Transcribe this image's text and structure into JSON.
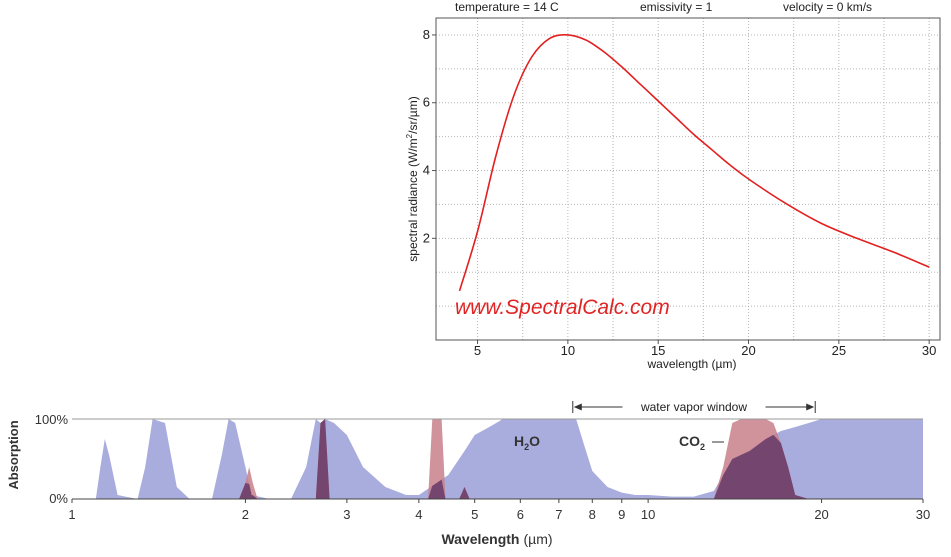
{
  "chart_data": [
    {
      "type": "line",
      "params": {
        "temperature": "temperature = 14 C",
        "emissivity": "emissivity = 1",
        "velocity": "velocity = 0 km/s"
      },
      "xlabel": "wavelength (µm)",
      "ylabel_main": "spectral radiance (W/m",
      "ylabel_sup": "2",
      "ylabel_tail": "/sr/µm)",
      "xlim": [
        2.7,
        30.6
      ],
      "ylim": [
        -1,
        8.5
      ],
      "xticks": [
        5,
        10,
        15,
        20,
        25,
        30
      ],
      "yticks": [
        2,
        4,
        6,
        8
      ],
      "grid": true,
      "watermark": "www.SpectralCalc.com",
      "line_color": "#e32020",
      "series": [
        {
          "x": [
            4,
            5,
            6,
            7,
            8,
            9,
            10,
            11,
            12,
            13,
            14,
            15,
            16,
            17,
            18,
            19,
            20,
            22,
            24,
            26,
            28,
            30
          ],
          "y": [
            0.45,
            2.2,
            4.4,
            6.2,
            7.35,
            7.9,
            8.0,
            7.85,
            7.5,
            7.05,
            6.55,
            6.05,
            5.55,
            5.05,
            4.6,
            4.15,
            3.75,
            3.05,
            2.45,
            2.0,
            1.6,
            1.15
          ]
        }
      ]
    },
    {
      "type": "area",
      "xscale": "log",
      "xlabel_main": "Wavelength",
      "xlabel_unit": "(µm)",
      "ylabel": "Absorption",
      "yticks": [
        "100%",
        "0%"
      ],
      "xticks": [
        "1",
        "2",
        "3",
        "4",
        "5",
        "6",
        "7",
        "8",
        "9",
        "10",
        "20",
        "30"
      ],
      "xlim": [
        1,
        30
      ],
      "ylim": [
        0,
        100
      ],
      "window_label": "water vapor window",
      "window_range": [
        7.4,
        19.5
      ],
      "labels": {
        "h2o_main": "H",
        "h2o_sub": "2",
        "h2o_tail": "O",
        "co2_main": "CO",
        "co2_sub": "2"
      },
      "colors": {
        "h2o": "#a9addd",
        "co2": "#c87f8a",
        "overlap": "#6b3e6a"
      },
      "series": [
        {
          "gas": "h2o",
          "x": [
            1.0,
            1.1,
            1.12,
            1.14,
            1.16,
            1.2,
            1.3,
            1.34,
            1.38,
            1.45,
            1.52,
            1.6,
            1.75,
            1.82,
            1.87,
            1.92,
            2.0,
            2.05,
            2.2,
            2.4,
            2.55,
            2.65,
            2.7,
            2.75,
            2.85,
            3.0,
            3.2,
            3.5,
            3.8,
            4.0,
            4.5,
            4.8,
            5.0,
            5.3,
            5.6,
            6.0,
            6.5,
            7.0,
            7.5,
            7.8,
            8.0,
            8.5,
            9.0,
            9.5,
            10.0,
            11.0,
            12.0,
            13.0,
            13.5,
            14.0,
            15.0,
            16.0,
            17.0,
            18.0,
            19.0,
            20.0,
            22.0,
            25.0,
            30.0
          ],
          "y": [
            0,
            0,
            40,
            75,
            55,
            5,
            0,
            40,
            100,
            95,
            15,
            0,
            0,
            55,
            100,
            95,
            40,
            5,
            0,
            0,
            40,
            100,
            95,
            100,
            95,
            80,
            40,
            15,
            5,
            5,
            30,
            60,
            80,
            90,
            100,
            100,
            100,
            100,
            100,
            60,
            35,
            15,
            8,
            5,
            5,
            3,
            3,
            10,
            30,
            50,
            60,
            75,
            85,
            90,
            95,
            100,
            100,
            100,
            100
          ]
        },
        {
          "gas": "co2",
          "x": [
            1.0,
            1.95,
            2.0,
            2.03,
            2.06,
            2.1,
            2.65,
            2.7,
            2.75,
            2.8,
            4.15,
            4.22,
            4.3,
            4.38,
            4.45,
            4.7,
            4.8,
            4.9,
            13.0,
            13.5,
            14.0,
            14.5,
            15.0,
            15.5,
            16.0,
            16.5,
            17.0,
            17.5,
            18.0,
            19.0,
            30.0
          ],
          "y": [
            0,
            0,
            20,
            40,
            20,
            0,
            0,
            95,
            100,
            0,
            0,
            100,
            100,
            100,
            0,
            0,
            15,
            0,
            0,
            40,
            95,
            100,
            100,
            100,
            100,
            95,
            70,
            40,
            5,
            0,
            0
          ]
        }
      ]
    }
  ]
}
